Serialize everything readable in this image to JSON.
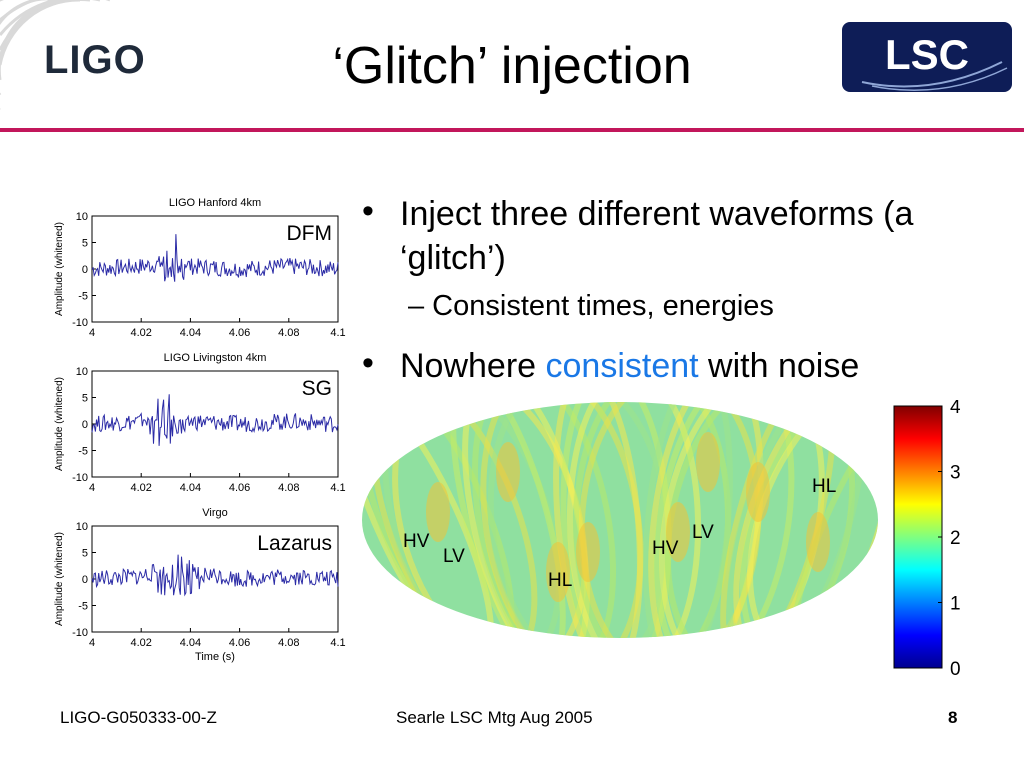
{
  "title": "‘Glitch’ injection",
  "logos": {
    "ligo": "LIGO",
    "lsc": "LSC"
  },
  "bullets": [
    {
      "text": "Inject three different waveforms (a ‘glitch’)"
    },
    {
      "sub": "– Consistent times, energies"
    },
    {
      "pre": "Nowhere ",
      "accent": "consistent",
      "post": " with noise"
    }
  ],
  "accent_color": "#1a78e6",
  "rule_color": "#c2175b",
  "plots": {
    "ylabel": "Amplitude (whitened)",
    "xlabel": "Time (s)",
    "xticks": [
      "4",
      "4.02",
      "4.04",
      "4.06",
      "4.08",
      "4.1"
    ],
    "yticks": [
      "10",
      "5",
      "0",
      "-5",
      "-10"
    ],
    "panels": [
      {
        "title": "LIGO Hanford 4km",
        "label": "DFM"
      },
      {
        "title": "LIGO Livingston 4km",
        "label": "SG"
      },
      {
        "title": "Virgo",
        "label": "Lazarus"
      }
    ]
  },
  "chart_data": [
    {
      "type": "line",
      "title": "LIGO Hanford 4km",
      "ylabel": "Amplitude (whitened)",
      "xlim": [
        4,
        4.1
      ],
      "ylim": [
        -10,
        10
      ],
      "series": [
        {
          "name": "DFM",
          "x": [
            4.0,
            4.02,
            4.028,
            4.03,
            4.032,
            4.034,
            4.036,
            4.04,
            4.06,
            4.08,
            4.1
          ],
          "y": [
            0,
            0.5,
            1,
            5,
            -1,
            -6,
            2,
            0.5,
            0,
            0.5,
            0
          ]
        }
      ]
    },
    {
      "type": "line",
      "title": "LIGO Livingston 4km",
      "ylabel": "Amplitude (whitened)",
      "xlim": [
        4,
        4.1
      ],
      "ylim": [
        -10,
        10
      ],
      "series": [
        {
          "name": "SG",
          "x": [
            4.0,
            4.02,
            4.025,
            4.027,
            4.029,
            4.031,
            4.033,
            4.035,
            4.04,
            4.06,
            4.08,
            4.1
          ],
          "y": [
            0,
            0.5,
            3,
            -5,
            6,
            -8,
            5,
            -3,
            0.5,
            0,
            0.5,
            0
          ]
        }
      ]
    },
    {
      "type": "line",
      "title": "Virgo",
      "ylabel": "Amplitude (whitened)",
      "xlabel": "Time (s)",
      "xlim": [
        4,
        4.1
      ],
      "ylim": [
        -10,
        10
      ],
      "series": [
        {
          "name": "Lazarus",
          "x": [
            4.0,
            4.02,
            4.03,
            4.033,
            4.036,
            4.038,
            4.04,
            4.043,
            4.046,
            4.06,
            4.08,
            4.1
          ],
          "y": [
            0,
            0.5,
            2,
            -4,
            7,
            -7,
            5,
            -2,
            1,
            0,
            0.5,
            0
          ]
        }
      ]
    },
    {
      "type": "heatmap",
      "colorbar": {
        "range": [
          0,
          4
        ],
        "ticks": [
          "4",
          "3",
          "2",
          "1",
          "0"
        ]
      },
      "annotations": [
        "HV",
        "LV",
        "HL",
        "HV",
        "LV",
        "HL"
      ]
    }
  ],
  "map": {
    "labels": [
      {
        "text": "HV"
      },
      {
        "text": "LV"
      },
      {
        "text": "HL"
      },
      {
        "text": "HV"
      },
      {
        "text": "LV"
      },
      {
        "text": "HL"
      }
    ]
  },
  "footer": {
    "left": "LIGO-G050333-00-Z",
    "center": "Searle LSC Mtg Aug 2005",
    "page": "8"
  }
}
